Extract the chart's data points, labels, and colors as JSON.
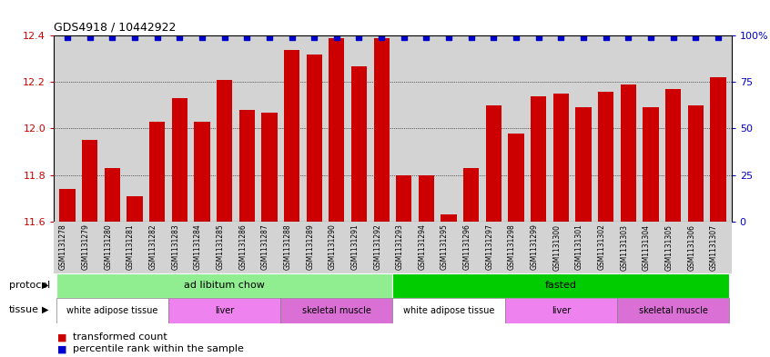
{
  "title": "GDS4918 / 10442922",
  "samples": [
    "GSM1131278",
    "GSM1131279",
    "GSM1131280",
    "GSM1131281",
    "GSM1131282",
    "GSM1131283",
    "GSM1131284",
    "GSM1131285",
    "GSM1131286",
    "GSM1131287",
    "GSM1131288",
    "GSM1131289",
    "GSM1131290",
    "GSM1131291",
    "GSM1131292",
    "GSM1131293",
    "GSM1131294",
    "GSM1131295",
    "GSM1131296",
    "GSM1131297",
    "GSM1131298",
    "GSM1131299",
    "GSM1131300",
    "GSM1131301",
    "GSM1131302",
    "GSM1131303",
    "GSM1131304",
    "GSM1131305",
    "GSM1131306",
    "GSM1131307"
  ],
  "bar_values": [
    11.74,
    11.95,
    11.83,
    11.71,
    12.03,
    12.13,
    12.03,
    12.21,
    12.08,
    12.07,
    12.34,
    12.32,
    12.39,
    12.27,
    12.39,
    11.8,
    11.8,
    11.63,
    11.83,
    12.1,
    11.98,
    12.14,
    12.15,
    12.09,
    12.16,
    12.19,
    12.09,
    12.17,
    12.1,
    12.22
  ],
  "ylim_left": [
    11.6,
    12.4
  ],
  "ylim_right": [
    0,
    100
  ],
  "yticks_left": [
    11.6,
    11.8,
    12.0,
    12.2,
    12.4
  ],
  "yticks_right": [
    0,
    25,
    50,
    75,
    100
  ],
  "ytick_right_labels": [
    "0",
    "25",
    "50",
    "75",
    "100%"
  ],
  "bar_color": "#cc0000",
  "percentile_color": "#0000cc",
  "bg_color": "#d3d3d3",
  "protocol_groups": [
    {
      "label": "ad libitum chow",
      "start": 0,
      "end": 14,
      "color": "#90ee90"
    },
    {
      "label": "fasted",
      "start": 15,
      "end": 29,
      "color": "#00cc00"
    }
  ],
  "tissue_groups": [
    {
      "label": "white adipose tissue",
      "start": 0,
      "end": 4,
      "color": "#ffffff"
    },
    {
      "label": "liver",
      "start": 5,
      "end": 9,
      "color": "#ee82ee"
    },
    {
      "label": "skeletal muscle",
      "start": 10,
      "end": 14,
      "color": "#da70d6"
    },
    {
      "label": "white adipose tissue",
      "start": 15,
      "end": 19,
      "color": "#ffffff"
    },
    {
      "label": "liver",
      "start": 20,
      "end": 24,
      "color": "#ee82ee"
    },
    {
      "label": "skeletal muscle",
      "start": 25,
      "end": 29,
      "color": "#da70d6"
    }
  ]
}
